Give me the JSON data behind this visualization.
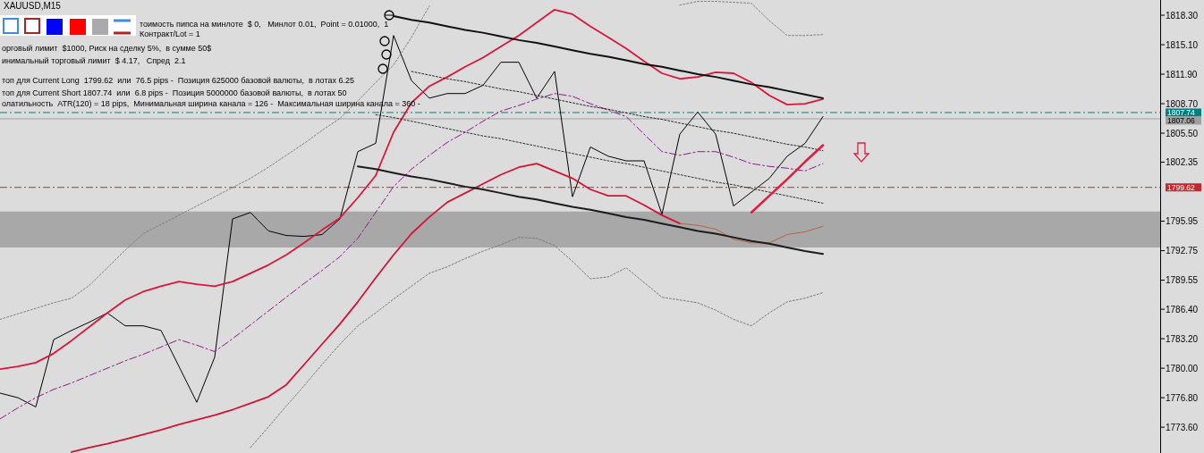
{
  "chart_data": {
    "type": "line",
    "title": "XAUUSD,M15",
    "annotations": [
      "тоимость пипса на минлоте  $ 0,   Минлот 0.01,  Point = 0.01000,  1 Контракт/Lot = 1",
      "орговый лимит  $1000, Риск на сделку 5%,  в сумме 50$",
      "инимальный торговый лимит  $ 4.17,   Спред  2.1",
      "топ для Current Long  1799.62  или  76.5 pips -  Позиция 625000 базовой валюты,  в лотах 6.25",
      "топ для Current Short 1807.74  или  6.8 pips -  Позиция 5000000 базовой валюты,  в лотах 50",
      "олатильность  ATR(120) = 18 pips,  Минимальная ширина канала = 126 -  Максимальная ширина канала = 360 -"
    ],
    "categories": [
      null,
      null,
      null,
      null,
      null,
      null,
      null,
      null,
      null,
      null,
      null,
      null,
      null,
      null,
      null,
      null,
      null,
      null,
      null,
      null,
      null,
      null,
      null,
      null,
      null,
      null,
      null,
      null,
      null,
      null,
      null,
      null,
      null,
      null,
      null,
      null,
      null,
      null,
      null,
      null,
      null,
      null,
      null,
      null,
      null,
      null,
      null
    ],
    "ylim": [
      1770.8,
      1819.95
    ],
    "yticks": [
      {
        "value": 1818.3,
        "label": "1818.30"
      },
      {
        "value": 1815.1,
        "label": "1815.10"
      },
      {
        "value": 1811.9,
        "label": "1811.90"
      },
      {
        "value": 1808.7,
        "label": "1808.70"
      },
      {
        "value": 1805.5,
        "label": "1805.50"
      },
      {
        "value": 1802.35,
        "label": "1802.35"
      },
      {
        "value": 1795.95,
        "label": "1795.95"
      },
      {
        "value": 1792.75,
        "label": "1792.75"
      },
      {
        "value": 1789.55,
        "label": "1789.55"
      },
      {
        "value": 1786.4,
        "label": "1786.40"
      },
      {
        "value": 1783.2,
        "label": "1783.20"
      },
      {
        "value": 1780.0,
        "label": "1780.00"
      },
      {
        "value": 1776.8,
        "label": "1776.80"
      },
      {
        "value": 1773.6,
        "label": "1773.60"
      }
    ],
    "tick_labels": "y",
    "grid": false,
    "marker": "none",
    "bands": [
      {
        "axis": "y",
        "from": 1793.1,
        "to": 1797.0,
        "color": "#a8a8a8"
      }
    ],
    "ref_lines": [
      {
        "axis": "y",
        "value": 1807.74,
        "label": "1807.74",
        "color": "#008080",
        "line_style": "dashed"
      },
      {
        "axis": "y",
        "value": 1807.06,
        "label": "1807.06",
        "color": "#a0a0a0",
        "line_style": "solid"
      },
      {
        "axis": "y",
        "value": 1799.62,
        "label": "1799.62",
        "color": "#c8282d",
        "line_style": "dashed"
      }
    ],
    "series": [
      {
        "color": "#000000",
        "line_style": "solid",
        "values": [
          1777.3,
          1776.8,
          1775.8,
          1783.1,
          1784.1,
          1785.0,
          1786.0,
          1784.6,
          1784.6,
          1784.1,
          1780.2,
          1776.3,
          1781.2,
          1796.2,
          1796.9,
          1794.9,
          1794.4,
          1794.3,
          1794.5,
          1796.2,
          1803.5,
          1804.4,
          1816.1,
          1811.2,
          1809.3,
          1809.8,
          1809.8,
          1810.7,
          1813.2,
          1813.2,
          1809.3,
          1812.2,
          1798.6,
          1804.0,
          1803.0,
          1802.5,
          1802.5,
          1796.7,
          1805.4,
          1807.8,
          1805.4,
          1797.6,
          1799.1,
          1800.6,
          1803.0,
          1804.4,
          1807.3
        ]
      },
      {
        "color": "#808080",
        "line_style": "dotted",
        "values": [
          1785.3,
          1785.9,
          1786.5,
          1787.1,
          1787.6,
          1789.0,
          1790.9,
          1792.8,
          1794.6,
          1795.6,
          1796.6,
          1797.6,
          1798.6,
          1799.6,
          1800.6,
          1801.8,
          1803.1,
          1804.4,
          1805.8,
          1807.1,
          1809.0,
          1811.0,
          1812.9,
          1815.9,
          1819.3,
          null,
          null,
          null,
          null,
          null,
          null,
          null,
          null,
          null,
          null,
          null,
          null,
          null,
          1819.4,
          1819.8,
          1819.8,
          1819.7,
          1819.6,
          1817.7,
          1816.1,
          1816.1,
          1816.2
        ]
      },
      {
        "color": "#7a7a7a",
        "line_style": "dotted",
        "values": [
          null,
          null,
          null,
          null,
          null,
          null,
          null,
          null,
          null,
          null,
          null,
          null,
          null,
          null,
          1771.4,
          1773.6,
          1775.9,
          1778.1,
          1780.4,
          1782.6,
          1784.6,
          1786.0,
          1787.5,
          1788.9,
          1790.3,
          1791.0,
          1791.9,
          1792.7,
          1793.4,
          1794.2,
          1794.1,
          1793.3,
          1791.6,
          1789.7,
          1789.9,
          1790.9,
          1789.3,
          1787.7,
          1787.4,
          1787.1,
          1786.3,
          1785.3,
          1784.6,
          1786.0,
          1787.2,
          1787.6,
          1788.2
        ]
      },
      {
        "color": "#8b1a8b",
        "line_style": "dashed",
        "values": [
          1774.5,
          1775.7,
          1776.8,
          1777.7,
          1778.4,
          1779.2,
          1780.0,
          1780.8,
          1781.5,
          1782.3,
          1783.1,
          1782.5,
          1781.8,
          1783.2,
          1784.7,
          1786.2,
          1787.7,
          1789.2,
          1790.6,
          1792.1,
          1794.1,
          1796.9,
          1799.7,
          1801.6,
          1803.1,
          1804.5,
          1805.6,
          1806.8,
          1807.9,
          1808.5,
          1809.2,
          1809.8,
          1809.5,
          1808.7,
          1808.0,
          1807.3,
          1805.4,
          1803.5,
          1803.1,
          1803.5,
          1803.5,
          1802.9,
          1802.2,
          1801.9,
          1801.7,
          1801.4,
          1802.2
        ]
      },
      {
        "color": "#dc143c",
        "line_style": "solid",
        "values": [
          1779.9,
          1780.2,
          1780.6,
          1781.6,
          1783.0,
          1784.5,
          1786.0,
          1787.4,
          1788.3,
          1788.9,
          1789.4,
          1789.1,
          1788.9,
          1789.4,
          1790.3,
          1791.2,
          1792.3,
          1793.6,
          1795.0,
          1796.3,
          1798.5,
          1800.9,
          1805.6,
          1808.8,
          1810.6,
          1811.6,
          1812.7,
          1813.7,
          1814.9,
          1816.1,
          1817.5,
          1818.9,
          1818.4,
          1817.1,
          1815.9,
          1814.7,
          1813.3,
          1812.0,
          1811.4,
          1811.6,
          1812.1,
          1812.0,
          1811.0,
          1809.6,
          1808.6,
          1808.7,
          1809.2
        ]
      },
      {
        "color": "#d21237",
        "line_style": "solid",
        "values": [
          null,
          null,
          null,
          null,
          1770.9,
          1771.4,
          1771.8,
          1772.3,
          1772.8,
          1773.3,
          1773.9,
          1774.4,
          1774.9,
          1775.5,
          1776.2,
          1776.9,
          1778.2,
          1780.4,
          1782.6,
          1784.8,
          1787.2,
          1789.8,
          1792.3,
          1794.6,
          1796.4,
          1798.0,
          1799.0,
          1800.0,
          1801.0,
          1801.8,
          1802.2,
          1801.4,
          1800.6,
          1799.4,
          1798.7,
          1798.7,
          1797.7,
          1796.6,
          1795.7,
          null,
          null,
          null,
          null,
          null,
          null,
          null,
          null
        ]
      },
      {
        "color": "#b8653f",
        "line_style": "solid",
        "values": [
          null,
          null,
          null,
          null,
          null,
          null,
          null,
          null,
          null,
          null,
          null,
          null,
          null,
          null,
          null,
          null,
          null,
          null,
          null,
          null,
          null,
          null,
          null,
          null,
          null,
          null,
          null,
          null,
          null,
          null,
          null,
          null,
          null,
          null,
          null,
          null,
          null,
          null,
          1795.7,
          1795.5,
          1795.1,
          1794.0,
          1793.6,
          1793.6,
          1794.5,
          1794.8,
          1795.4
        ]
      },
      {
        "color": "#111111",
        "line_style": "solid",
        "values": [
          null,
          null,
          null,
          null,
          null,
          null,
          null,
          null,
          null,
          null,
          null,
          null,
          null,
          null,
          null,
          null,
          null,
          null,
          null,
          null,
          null,
          null,
          1818.2,
          1817.8,
          1817.5,
          1817.1,
          1816.7,
          1816.4,
          1816.0,
          1815.6,
          1815.3,
          1814.9,
          1814.5,
          1814.1,
          1813.8,
          1813.4,
          1813.0,
          1812.7,
          1812.3,
          1811.9,
          1811.6,
          1811.2,
          1810.8,
          1810.5,
          1810.1,
          1809.7,
          1809.3
        ]
      },
      {
        "color": "#1c1c1c",
        "line_style": "solid",
        "values": [
          null,
          null,
          null,
          null,
          null,
          null,
          null,
          null,
          null,
          null,
          null,
          null,
          null,
          null,
          null,
          null,
          null,
          null,
          null,
          null,
          1801.9,
          1801.6,
          1801.2,
          1800.8,
          1800.5,
          1800.1,
          1799.7,
          1799.4,
          1799.0,
          1798.6,
          1798.3,
          1797.9,
          1797.5,
          1797.2,
          1796.8,
          1796.4,
          1796.1,
          1795.7,
          1795.3,
          1794.9,
          1794.6,
          1794.2,
          1793.8,
          1793.5,
          1793.1,
          1792.7,
          1792.4
        ]
      },
      {
        "color": "#262626",
        "line_style": "dotted",
        "values": [
          null,
          null,
          null,
          null,
          null,
          null,
          null,
          null,
          null,
          null,
          null,
          null,
          null,
          null,
          null,
          null,
          null,
          null,
          null,
          null,
          null,
          null,
          null,
          1812.2,
          1811.8,
          1811.4,
          1811.1,
          1810.7,
          1810.3,
          1810.0,
          1809.6,
          1809.2,
          1808.8,
          1808.4,
          1808.1,
          1807.7,
          1807.3,
          1807.0,
          1806.6,
          1806.2,
          1805.8,
          1805.5,
          1805.1,
          1804.7,
          1804.3,
          1804.0,
          1803.6
        ]
      },
      {
        "color": "#303030",
        "line_style": "dotted",
        "values": [
          null,
          null,
          null,
          null,
          null,
          null,
          null,
          null,
          null,
          null,
          null,
          null,
          null,
          null,
          null,
          null,
          null,
          null,
          null,
          null,
          null,
          1807.5,
          1807.2,
          1806.8,
          1806.4,
          1806.0,
          1805.6,
          1805.2,
          1804.9,
          1804.5,
          1804.1,
          1803.7,
          1803.3,
          1802.9,
          1802.5,
          1802.2,
          1801.8,
          1801.4,
          1801.0,
          1800.6,
          1800.2,
          1799.9,
          1799.5,
          1799.1,
          1798.7,
          1798.3,
          1797.9
        ]
      },
      {
        "color": "#e8193c",
        "line_style": "solid",
        "values": [
          null,
          null,
          null,
          null,
          null,
          null,
          null,
          null,
          null,
          null,
          null,
          null,
          null,
          null,
          null,
          null,
          null,
          null,
          null,
          null,
          null,
          null,
          null,
          null,
          null,
          null,
          null,
          null,
          null,
          null,
          null,
          null,
          null,
          null,
          null,
          null,
          null,
          null,
          null,
          null,
          null,
          null,
          1796.9,
          1798.7,
          1800.5,
          1802.4,
          1804.2
        ]
      }
    ]
  }
}
